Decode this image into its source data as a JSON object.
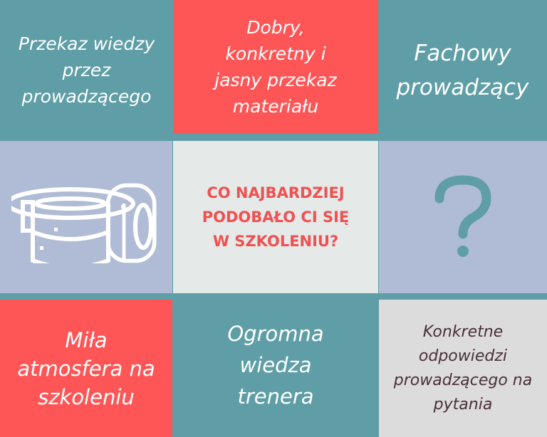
{
  "title": "CO NAJBARDZIEJ PODOBAŁO CI SIĘ W SZKOLENIU?",
  "title_lines": [
    "CO NAJBARDZIEJ",
    "PODOBAŁO CI SIĘ",
    "W SZKOLENIU?"
  ],
  "cells": {
    "top_left": [
      "Przekaz wiedzy",
      "przez",
      "prowadzącego"
    ],
    "top_center": [
      "Dobry,",
      "konkretny i",
      "jasny przekaz",
      "materiału"
    ],
    "top_right": [
      "Fachowy",
      "prowadzący"
    ],
    "bottom_left": [
      "Miła",
      "atmosfera na",
      "szkoleniu"
    ],
    "bottom_center": [
      "Ogromna",
      "wiedza",
      "trenera"
    ],
    "bottom_right": [
      "Konkretne",
      "odpowiedzi",
      "prowadzącego na",
      "pytania"
    ]
  },
  "icons": {
    "left": "tape-rolls-icon",
    "right": "question-mark-icon"
  },
  "colors": {
    "teal": "#5f9ea6",
    "red": "#fe5656",
    "bluegray": "#b0bcd5",
    "light": "#e5e9e8",
    "gray": "#dcdcdc"
  }
}
